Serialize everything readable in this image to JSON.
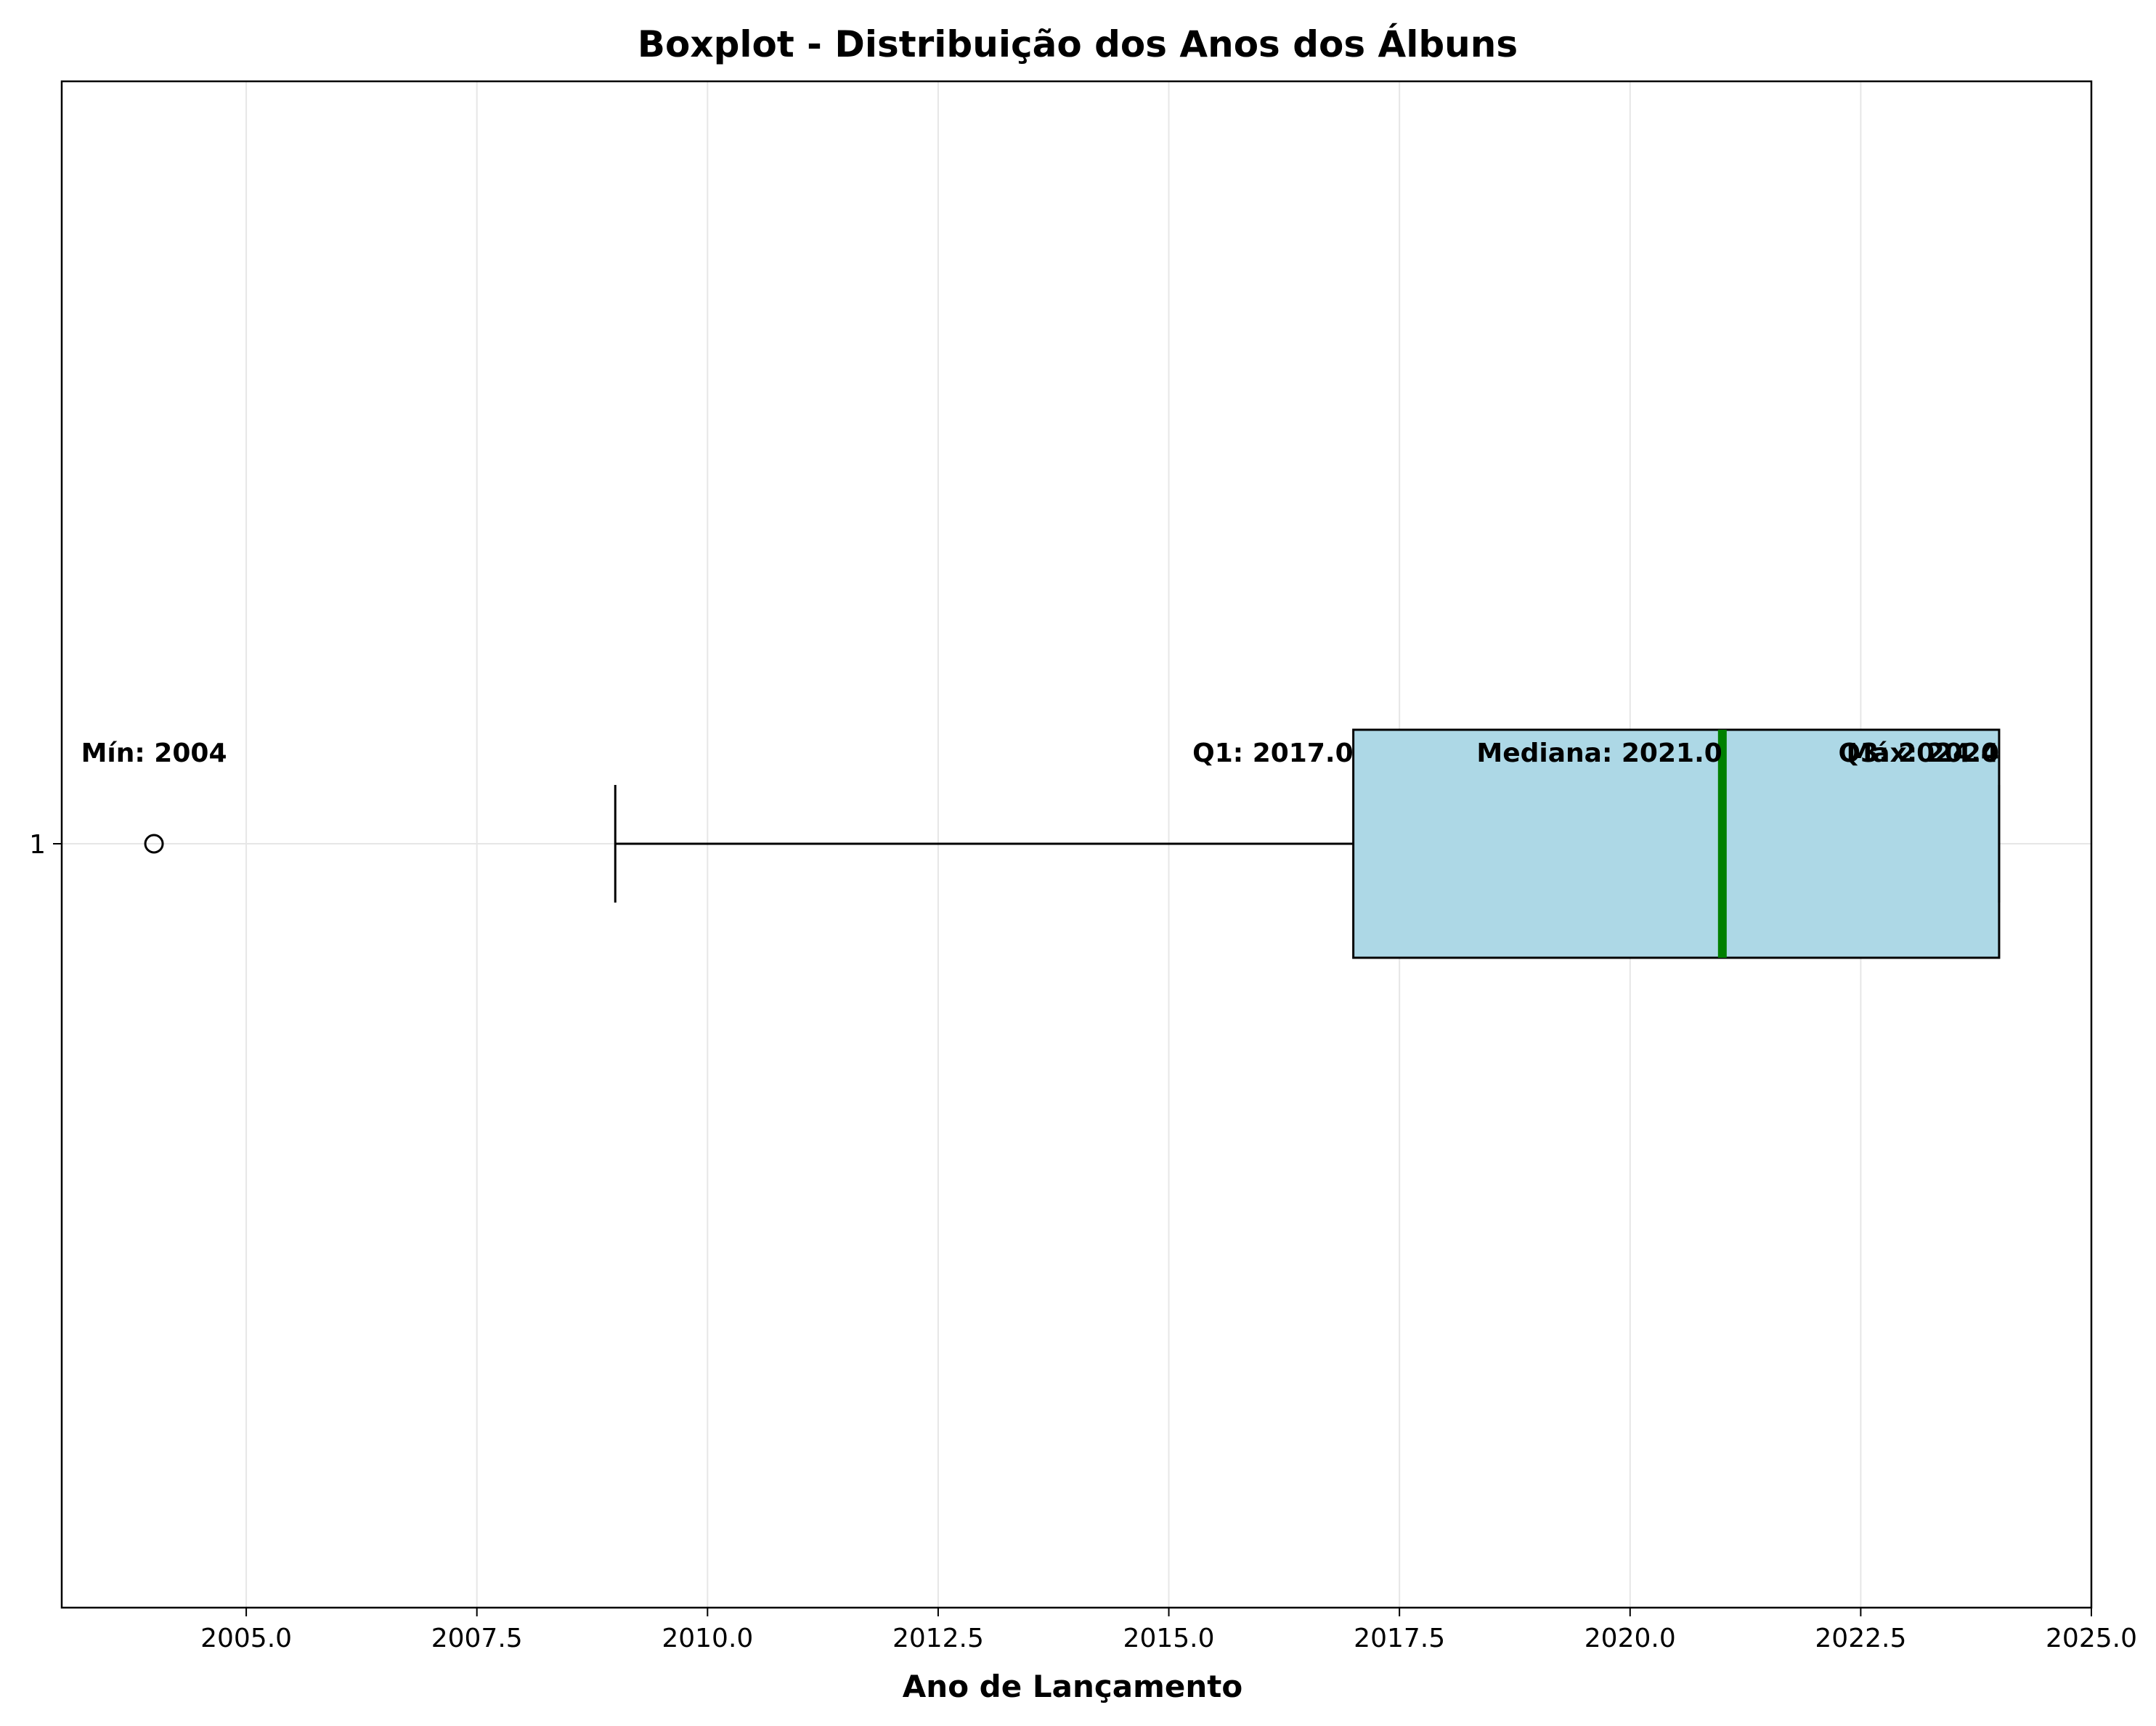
{
  "chart_data": {
    "type": "boxplot",
    "title": "Boxplot - Distribuição dos Anos dos Álbuns",
    "xlabel": "Ano de Lançamento",
    "ylabel": "",
    "xlim": [
      2003.0,
      2025.0
    ],
    "x_ticks": [
      2005.0,
      2007.5,
      2010.0,
      2012.5,
      2015.0,
      2017.5,
      2020.0,
      2022.5,
      2025.0
    ],
    "x_tick_labels": [
      "2005.0",
      "2007.5",
      "2010.0",
      "2012.5",
      "2015.0",
      "2017.5",
      "2020.0",
      "2022.5",
      "2025.0"
    ],
    "y_tick_labels": [
      "1"
    ],
    "grid": true,
    "orientation": "horizontal",
    "box": {
      "category": "1",
      "whisker_low": 2009.0,
      "q1": 2017.0,
      "median": 2021.0,
      "q3": 2024.0,
      "whisker_high": 2024.0,
      "outliers": [
        2004.0
      ]
    },
    "colors": {
      "box_fill": "#add8e6",
      "median_line": "#008000",
      "outline": "#000000",
      "grid": "#e6e6e6"
    },
    "annotations": [
      {
        "text": "Mín: 2004",
        "x": 2004.0,
        "anchor": "middle"
      },
      {
        "text": "Q1: 2017.0",
        "x": 2017.0,
        "anchor": "end"
      },
      {
        "text": "Mediana: 2021.0",
        "x": 2021.0,
        "anchor": "end"
      },
      {
        "text": "Q3: 2024.0",
        "x": 2024.0,
        "anchor": "end"
      },
      {
        "text": "Máx: 2024",
        "x": 2024.0,
        "anchor": "end"
      }
    ]
  }
}
